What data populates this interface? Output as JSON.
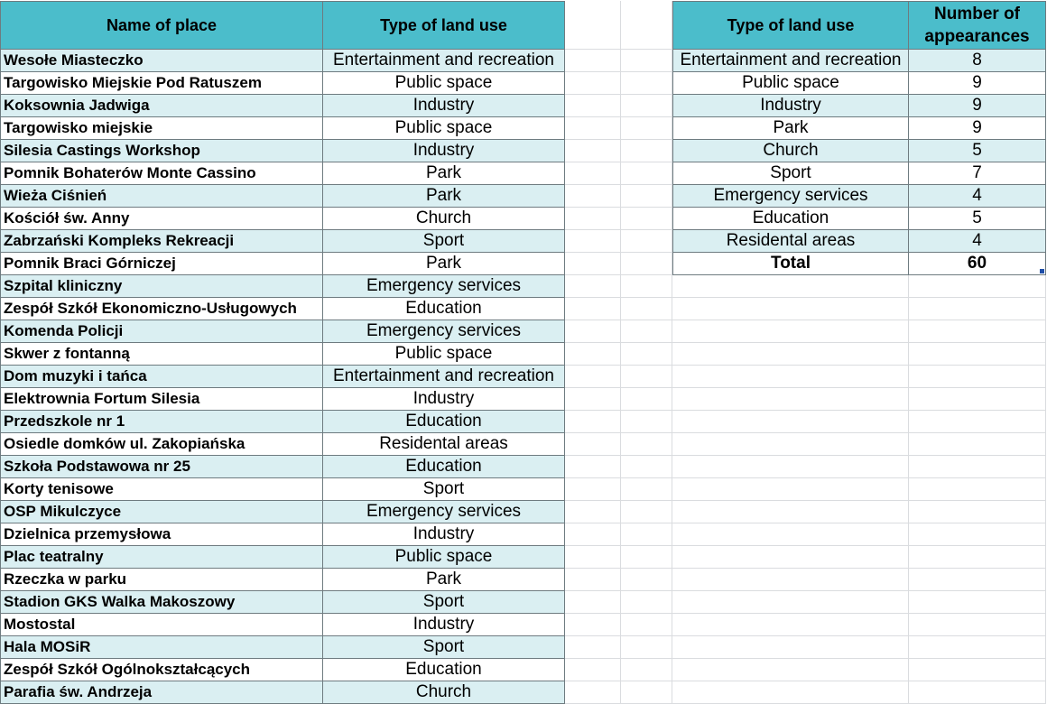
{
  "places_table": {
    "headers": {
      "name": "Name of place",
      "type": "Type of land use"
    },
    "rows": [
      {
        "name": "Wesołe Miasteczko",
        "type": "Entertainment and recreation"
      },
      {
        "name": "Targowisko Miejskie Pod Ratuszem",
        "type": "Public space"
      },
      {
        "name": "Koksownia Jadwiga",
        "type": "Industry"
      },
      {
        "name": "Targowisko miejskie",
        "type": "Public space"
      },
      {
        "name": "Silesia Castings Workshop",
        "type": "Industry"
      },
      {
        "name": "Pomnik Bohaterów Monte Cassino",
        "type": "Park"
      },
      {
        "name": "Wieża Ciśnień",
        "type": "Park"
      },
      {
        "name": "Kościół św. Anny",
        "type": "Church"
      },
      {
        "name": "Zabrzański Kompleks Rekreacji",
        "type": "Sport"
      },
      {
        "name": "Pomnik Braci Górniczej",
        "type": "Park"
      },
      {
        "name": "Szpital kliniczny",
        "type": "Emergency services"
      },
      {
        "name": "Zespół Szkół Ekonomiczno-Usługowych",
        "type": "Education"
      },
      {
        "name": "Komenda Policji",
        "type": "Emergency services"
      },
      {
        "name": "Skwer z fontanną",
        "type": "Public space"
      },
      {
        "name": "Dom muzyki i tańca",
        "type": "Entertainment and recreation"
      },
      {
        "name": "Elektrownia Fortum Silesia",
        "type": "Industry"
      },
      {
        "name": "Przedszkole nr 1",
        "type": "Education"
      },
      {
        "name": "Osiedle domków ul. Zakopiańska",
        "type": "Residental areas"
      },
      {
        "name": "Szkoła Podstawowa nr 25",
        "type": "Education"
      },
      {
        "name": "Korty tenisowe",
        "type": "Sport"
      },
      {
        "name": "OSP Mikulczyce",
        "type": "Emergency services"
      },
      {
        "name": "Dzielnica przemysłowa",
        "type": "Industry"
      },
      {
        "name": "Plac teatralny",
        "type": "Public space"
      },
      {
        "name": "Rzeczka w parku",
        "type": "Park"
      },
      {
        "name": "Stadion GKS Walka Makoszowy",
        "type": "Sport"
      },
      {
        "name": "Mostostal",
        "type": "Industry"
      },
      {
        "name": "Hala MOSiR",
        "type": "Sport"
      },
      {
        "name": "Zespół Szkół Ogólnokształcących",
        "type": "Education"
      },
      {
        "name": "Parafia św. Andrzeja",
        "type": "Church"
      }
    ]
  },
  "summary_table": {
    "headers": {
      "type": "Type of land use",
      "count_line1": "Number of",
      "count_line2": "appearances"
    },
    "rows": [
      {
        "type": "Entertainment and recreation",
        "count": "8"
      },
      {
        "type": "Public space",
        "count": "9"
      },
      {
        "type": "Industry",
        "count": "9"
      },
      {
        "type": "Park",
        "count": "9"
      },
      {
        "type": "Church",
        "count": "5"
      },
      {
        "type": "Sport",
        "count": "7"
      },
      {
        "type": "Emergency services",
        "count": "4"
      },
      {
        "type": "Education",
        "count": "5"
      },
      {
        "type": "Residental areas",
        "count": "4"
      }
    ],
    "total": {
      "label": "Total",
      "count": "60"
    }
  },
  "colors": {
    "header_fill": "#4bbdcb",
    "band_fill": "#daeff2",
    "border": "#6e7b80",
    "gridline": "#dadcdf",
    "selection_handle": "#1f4fa8"
  }
}
